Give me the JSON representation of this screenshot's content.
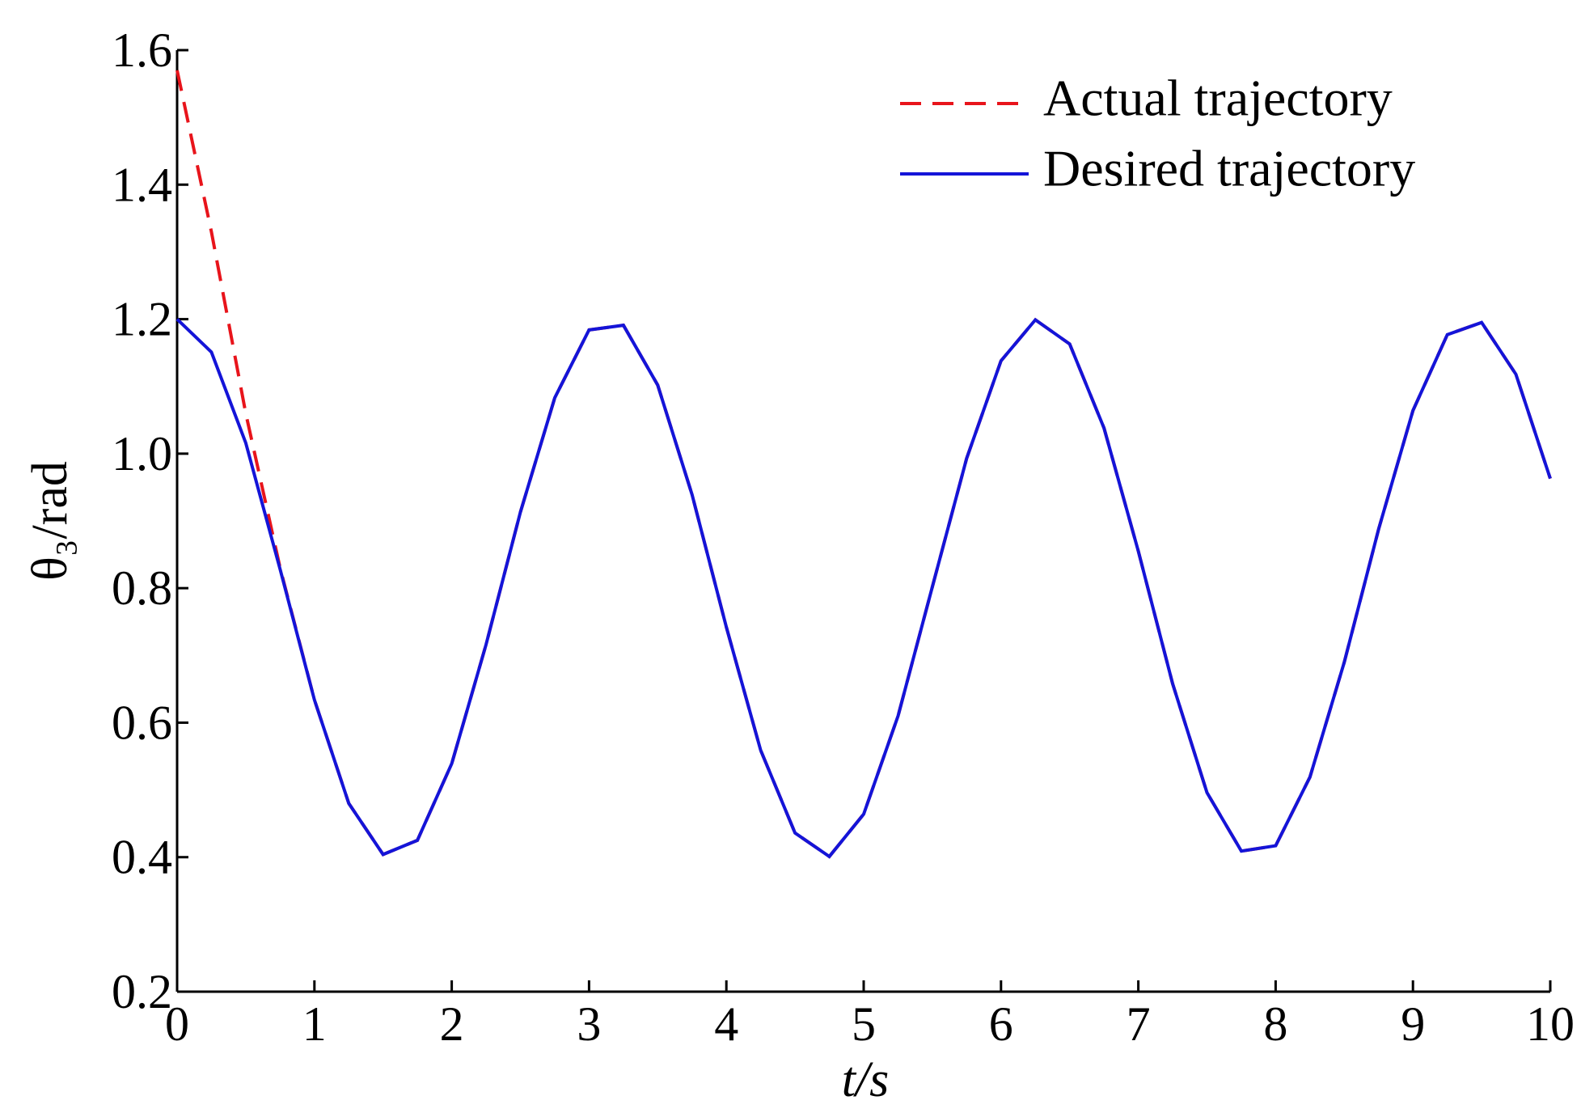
{
  "chart_data": {
    "type": "line",
    "xlabel": "t/s",
    "ylabel": "θ₃/rad",
    "x": [
      0,
      0.25,
      0.5,
      0.75,
      1,
      1.25,
      1.5,
      1.75,
      2,
      2.25,
      2.5,
      2.75,
      3,
      3.25,
      3.5,
      3.75,
      4,
      4.25,
      4.5,
      4.75,
      5,
      5.25,
      5.5,
      5.75,
      6,
      6.25,
      6.5,
      6.75,
      7,
      7.25,
      7.5,
      7.75,
      8,
      8.25,
      8.5,
      8.75,
      9,
      9.25,
      9.5,
      9.75,
      10
    ],
    "series": [
      {
        "name": "Actual trajectory",
        "color": "#e8141b",
        "dash": true,
        "values": [
          1.57,
          1.33,
          1.06,
          0.83,
          0.634,
          0.48,
          0.404,
          0.425,
          0.539,
          0.716,
          0.913,
          1.083,
          1.184,
          1.191,
          1.102,
          0.939,
          0.742,
          0.559,
          0.436,
          0.401,
          0.464,
          0.61,
          0.802,
          0.993,
          1.138,
          1.199,
          1.163,
          1.038,
          0.855,
          0.658,
          0.496,
          0.409,
          0.417,
          0.519,
          0.69,
          0.888,
          1.064,
          1.177,
          1.195,
          1.118,
          0.963
        ]
      },
      {
        "name": "Desired trajectory",
        "color": "#1414d8",
        "dash": false,
        "values": [
          1.2,
          1.151,
          1.016,
          0.828,
          0.634,
          0.48,
          0.404,
          0.425,
          0.539,
          0.716,
          0.913,
          1.083,
          1.184,
          1.191,
          1.102,
          0.939,
          0.742,
          0.559,
          0.436,
          0.401,
          0.464,
          0.61,
          0.802,
          0.993,
          1.138,
          1.199,
          1.163,
          1.038,
          0.855,
          0.658,
          0.496,
          0.409,
          0.417,
          0.519,
          0.69,
          0.888,
          1.064,
          1.177,
          1.195,
          1.118,
          0.963
        ]
      }
    ],
    "xlim": [
      0,
      10
    ],
    "xticks": [
      0,
      1,
      2,
      3,
      4,
      5,
      6,
      7,
      8,
      9,
      10
    ],
    "ylim": [
      0.2,
      1.6
    ],
    "yticks": [
      0.2,
      0.4,
      0.6,
      0.8,
      {
        "value": 1,
        "label": "1.0"
      },
      1.2,
      1.4,
      1.6
    ],
    "grid": false,
    "legend": "upper right"
  }
}
